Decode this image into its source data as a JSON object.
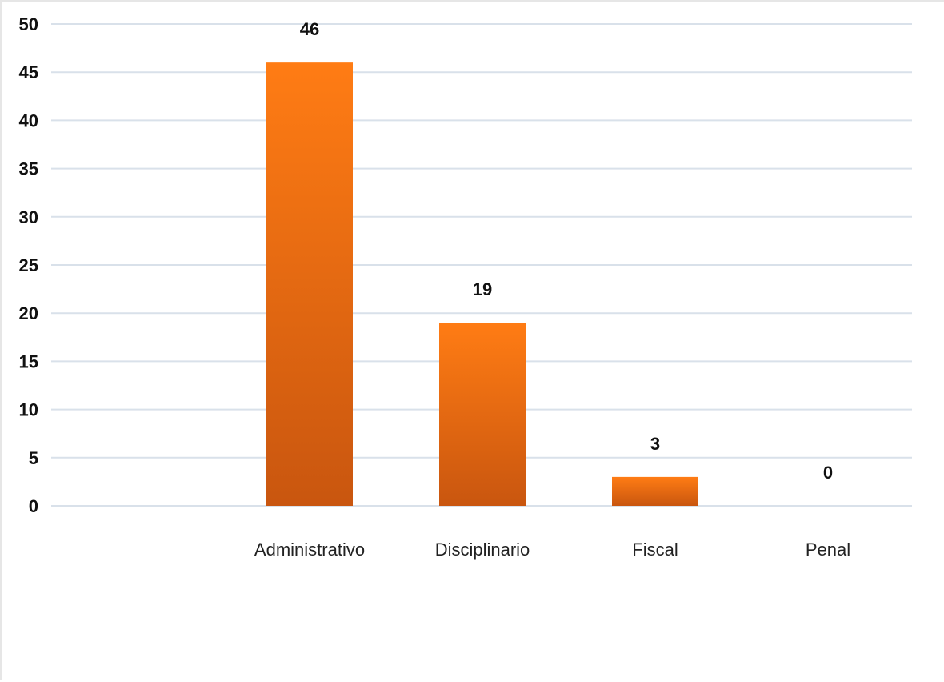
{
  "chart_data": {
    "type": "bar",
    "title": "",
    "xlabel": "",
    "ylabel": "",
    "categories": [
      "Administrativo",
      "Disciplinario",
      "Fiscal",
      "Penal"
    ],
    "values": [
      46,
      19,
      3,
      0
    ],
    "data_labels": [
      "46",
      "19",
      "3",
      "0"
    ],
    "ylim": [
      0,
      50
    ],
    "yticks": [
      0,
      5,
      10,
      15,
      20,
      25,
      30,
      35,
      40,
      45,
      50
    ],
    "ytick_labels": [
      "0",
      "5",
      "10",
      "15",
      "20",
      "25",
      "30",
      "35",
      "40",
      "45",
      "50"
    ],
    "grid": true,
    "legend": "none",
    "colors": {
      "bar_top": "#ff7c14",
      "bar_bottom": "#c9560f",
      "grid": "#d9e1ea",
      "text": "#111111"
    }
  }
}
